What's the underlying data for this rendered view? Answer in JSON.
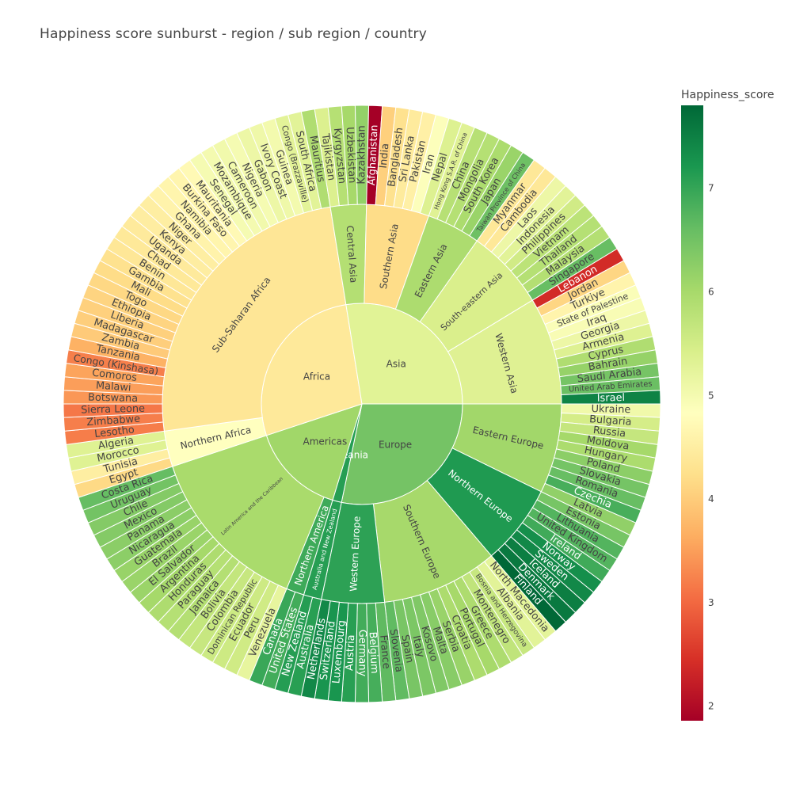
{
  "chart_data": {
    "type": "sunburst",
    "title": "Happiness score sunburst - region / sub region / country",
    "colorbar": {
      "title": "Happiness_score",
      "min": 1.86,
      "max": 7.8,
      "ticks": [
        2,
        3,
        4,
        5,
        6,
        7
      ],
      "colorscale": [
        "#a50026",
        "#d73027",
        "#f46d43",
        "#fdae61",
        "#fee08b",
        "#ffffbf",
        "#d9ef8b",
        "#a6d96a",
        "#66bd63",
        "#1a9850",
        "#006837"
      ]
    },
    "tree": [
      {
        "name": "Europe",
        "children": [
          {
            "name": "Eastern Europe",
            "countries": [
              [
                "Ukraine",
                5.07
              ],
              [
                "Bulgaria",
                5.47
              ],
              [
                "Russia",
                5.66
              ],
              [
                "Moldova",
                6.02
              ],
              [
                "Hungary",
                5.95
              ],
              [
                "Poland",
                6.26
              ],
              [
                "Slovakia",
                6.47
              ],
              [
                "Romania",
                6.59
              ],
              [
                "Czechia",
                6.85
              ],
              [
                "Latvia",
                6.21
              ]
            ]
          },
          {
            "name": "Northern Europe",
            "countries": [
              [
                "Estonia",
                6.45
              ],
              [
                "Lithuania",
                6.76
              ],
              [
                "United Kingdom",
                6.75
              ],
              [
                "Ireland",
                6.91
              ],
              [
                "Norway",
                7.32
              ],
              [
                "Sweden",
                7.4
              ],
              [
                "Iceland",
                7.53
              ],
              [
                "Denmark",
                7.59
              ],
              [
                "Finland",
                7.8
              ]
            ]
          },
          {
            "name": "Southern Europe",
            "countries": [
              [
                "North Macedonia",
                5.25
              ],
              [
                "Albania",
                5.28
              ],
              [
                "Bosnia and Herzegovina",
                5.63
              ],
              [
                "Montenegro",
                5.72
              ],
              [
                "Greece",
                5.93
              ],
              [
                "Portugal",
                6.01
              ],
              [
                "Croatia",
                5.94
              ],
              [
                "Serbia",
                6.14
              ],
              [
                "Malta",
                6.3
              ],
              [
                "Kosovo",
                6.37
              ],
              [
                "Italy",
                6.41
              ],
              [
                "Spain",
                6.44
              ],
              [
                "Slovenia",
                6.65
              ]
            ]
          },
          {
            "name": "Western Europe",
            "countries": [
              [
                "France",
                6.66
              ],
              [
                "Belgium",
                6.86
              ],
              [
                "Germany",
                6.89
              ],
              [
                "Austria",
                7.1
              ],
              [
                "Luxembourg",
                7.23
              ],
              [
                "Switzerland",
                7.24
              ],
              [
                "Netherlands",
                7.4
              ]
            ]
          }
        ]
      },
      {
        "name": "Oceania",
        "children": [
          {
            "name": "Australia and New Zealand",
            "countries": [
              [
                "Australia",
                7.1
              ],
              [
                "New Zealand",
                7.12
              ]
            ]
          }
        ]
      },
      {
        "name": "Americas",
        "children": [
          {
            "name": "Northern America",
            "countries": [
              [
                "United States",
                6.89
              ],
              [
                "Canada",
                6.96
              ]
            ]
          },
          {
            "name": "Latin America and the Caribbean",
            "countries": [
              [
                "Venezuela",
                5.21
              ],
              [
                "Peru",
                5.53
              ],
              [
                "Ecuador",
                5.56
              ],
              [
                "Dominican Republic",
                5.57
              ],
              [
                "Colombia",
                5.63
              ],
              [
                "Bolivia",
                5.68
              ],
              [
                "Jamaica",
                5.85
              ],
              [
                "Paraguay",
                5.84
              ],
              [
                "Honduras",
                5.93
              ],
              [
                "Argentina",
                6.02
              ],
              [
                "El Salvador",
                6.12
              ],
              [
                "Brazil",
                6.13
              ],
              [
                "Guatemala",
                6.15
              ],
              [
                "Nicaragua",
                6.26
              ],
              [
                "Panama",
                6.27
              ],
              [
                "Mexico",
                6.33
              ],
              [
                "Chile",
                6.33
              ],
              [
                "Uruguay",
                6.49
              ],
              [
                "Costa Rica",
                6.61
              ]
            ]
          }
        ]
      },
      {
        "name": "Africa",
        "children": [
          {
            "name": "Northern Africa",
            "countries": [
              [
                "Egypt",
                4.17
              ],
              [
                "Tunisia",
                4.5
              ],
              [
                "Morocco",
                5.33
              ],
              [
                "Algeria",
                5.33
              ]
            ]
          },
          {
            "name": "Sub-Saharan Africa",
            "countries": [
              [
                "Lesotho",
                3.19
              ],
              [
                "Zimbabwe",
                3.2
              ],
              [
                "Sierra Leone",
                3.14
              ],
              [
                "Botswana",
                3.43
              ],
              [
                "Malawi",
                3.5
              ],
              [
                "Comoros",
                3.55
              ],
              [
                "Congo (Kinshasa)",
                3.21
              ],
              [
                "Tanzania",
                3.69
              ],
              [
                "Zambia",
                3.98
              ],
              [
                "Madagascar",
                4.02
              ],
              [
                "Liberia",
                4.04
              ],
              [
                "Ethiopia",
                4.09
              ],
              [
                "Togo",
                4.14
              ],
              [
                "Mali",
                4.2
              ],
              [
                "Gambia",
                4.28
              ],
              [
                "Benin",
                4.37
              ],
              [
                "Chad",
                4.4
              ],
              [
                "Uganda",
                4.43
              ],
              [
                "Kenya",
                4.49
              ],
              [
                "Niger",
                4.5
              ],
              [
                "Ghana",
                4.6
              ],
              [
                "Namibia",
                4.63
              ],
              [
                "Burkina Faso",
                4.64
              ],
              [
                "Mauritania",
                4.72
              ],
              [
                "Senegal",
                4.98
              ],
              [
                "Mozambique",
                5.0
              ],
              [
                "Cameroon",
                5.05
              ],
              [
                "Nigeria",
                4.98
              ],
              [
                "Gabon",
                5.11
              ],
              [
                "Ivory Coast",
                5.08
              ],
              [
                "Guinea",
                5.02
              ],
              [
                "Congo (Brazzaville)",
                5.27
              ],
              [
                "South Africa",
                5.28
              ],
              [
                "Mauritius",
                5.9
              ]
            ]
          }
        ]
      },
      {
        "name": "Asia",
        "children": [
          {
            "name": "Central Asia",
            "countries": [
              [
                "Tajikistan",
                5.38
              ],
              [
                "Kyrgyzstan",
                5.83
              ],
              [
                "Uzbekistan",
                6.01
              ],
              [
                "Kazakhstan",
                6.19
              ]
            ]
          },
          {
            "name": "Southern Asia",
            "countries": [
              [
                "Afghanistan",
                1.86
              ],
              [
                "India",
                4.04
              ],
              [
                "Bangladesh",
                4.28
              ],
              [
                "Sri Lanka",
                4.44
              ],
              [
                "Pakistan",
                4.55
              ],
              [
                "Iran",
                4.88
              ],
              [
                "Nepal",
                5.36
              ]
            ]
          },
          {
            "name": "Eastern Asia",
            "countries": [
              [
                "Hong Kong S.A.R. of China",
                5.31
              ],
              [
                "China",
                5.82
              ],
              [
                "Mongolia",
                5.84
              ],
              [
                "South Korea",
                5.95
              ],
              [
                "Japan",
                6.13
              ],
              [
                "Taiwan Province of China",
                6.54
              ]
            ]
          },
          {
            "name": "South-eastern Asia",
            "countries": [
              [
                "Myanmar",
                4.39
              ],
              [
                "Cambodia",
                4.39
              ],
              [
                "Laos",
                5.11
              ],
              [
                "Indonesia",
                5.28
              ],
              [
                "Philippines",
                5.52
              ],
              [
                "Vietnam",
                5.76
              ],
              [
                "Thailand",
                5.84
              ],
              [
                "Malaysia",
                5.86
              ],
              [
                "Singapore",
                6.59
              ]
            ]
          },
          {
            "name": "Western Asia",
            "countries": [
              [
                "Lebanon",
                2.39
              ],
              [
                "Jordan",
                4.12
              ],
              [
                "Turkiye",
                4.61
              ],
              [
                "State of Palestine",
                4.91
              ],
              [
                "Iraq",
                4.94
              ],
              [
                "Georgia",
                5.11
              ],
              [
                "Armenia",
                5.34
              ],
              [
                "Cyprus",
                5.9
              ],
              [
                "Bahrain",
                6.17
              ],
              [
                "Saudi Arabia",
                6.46
              ],
              [
                "United Arab Emirates",
                6.57
              ],
              [
                "Israel",
                7.47
              ]
            ]
          }
        ]
      }
    ]
  }
}
